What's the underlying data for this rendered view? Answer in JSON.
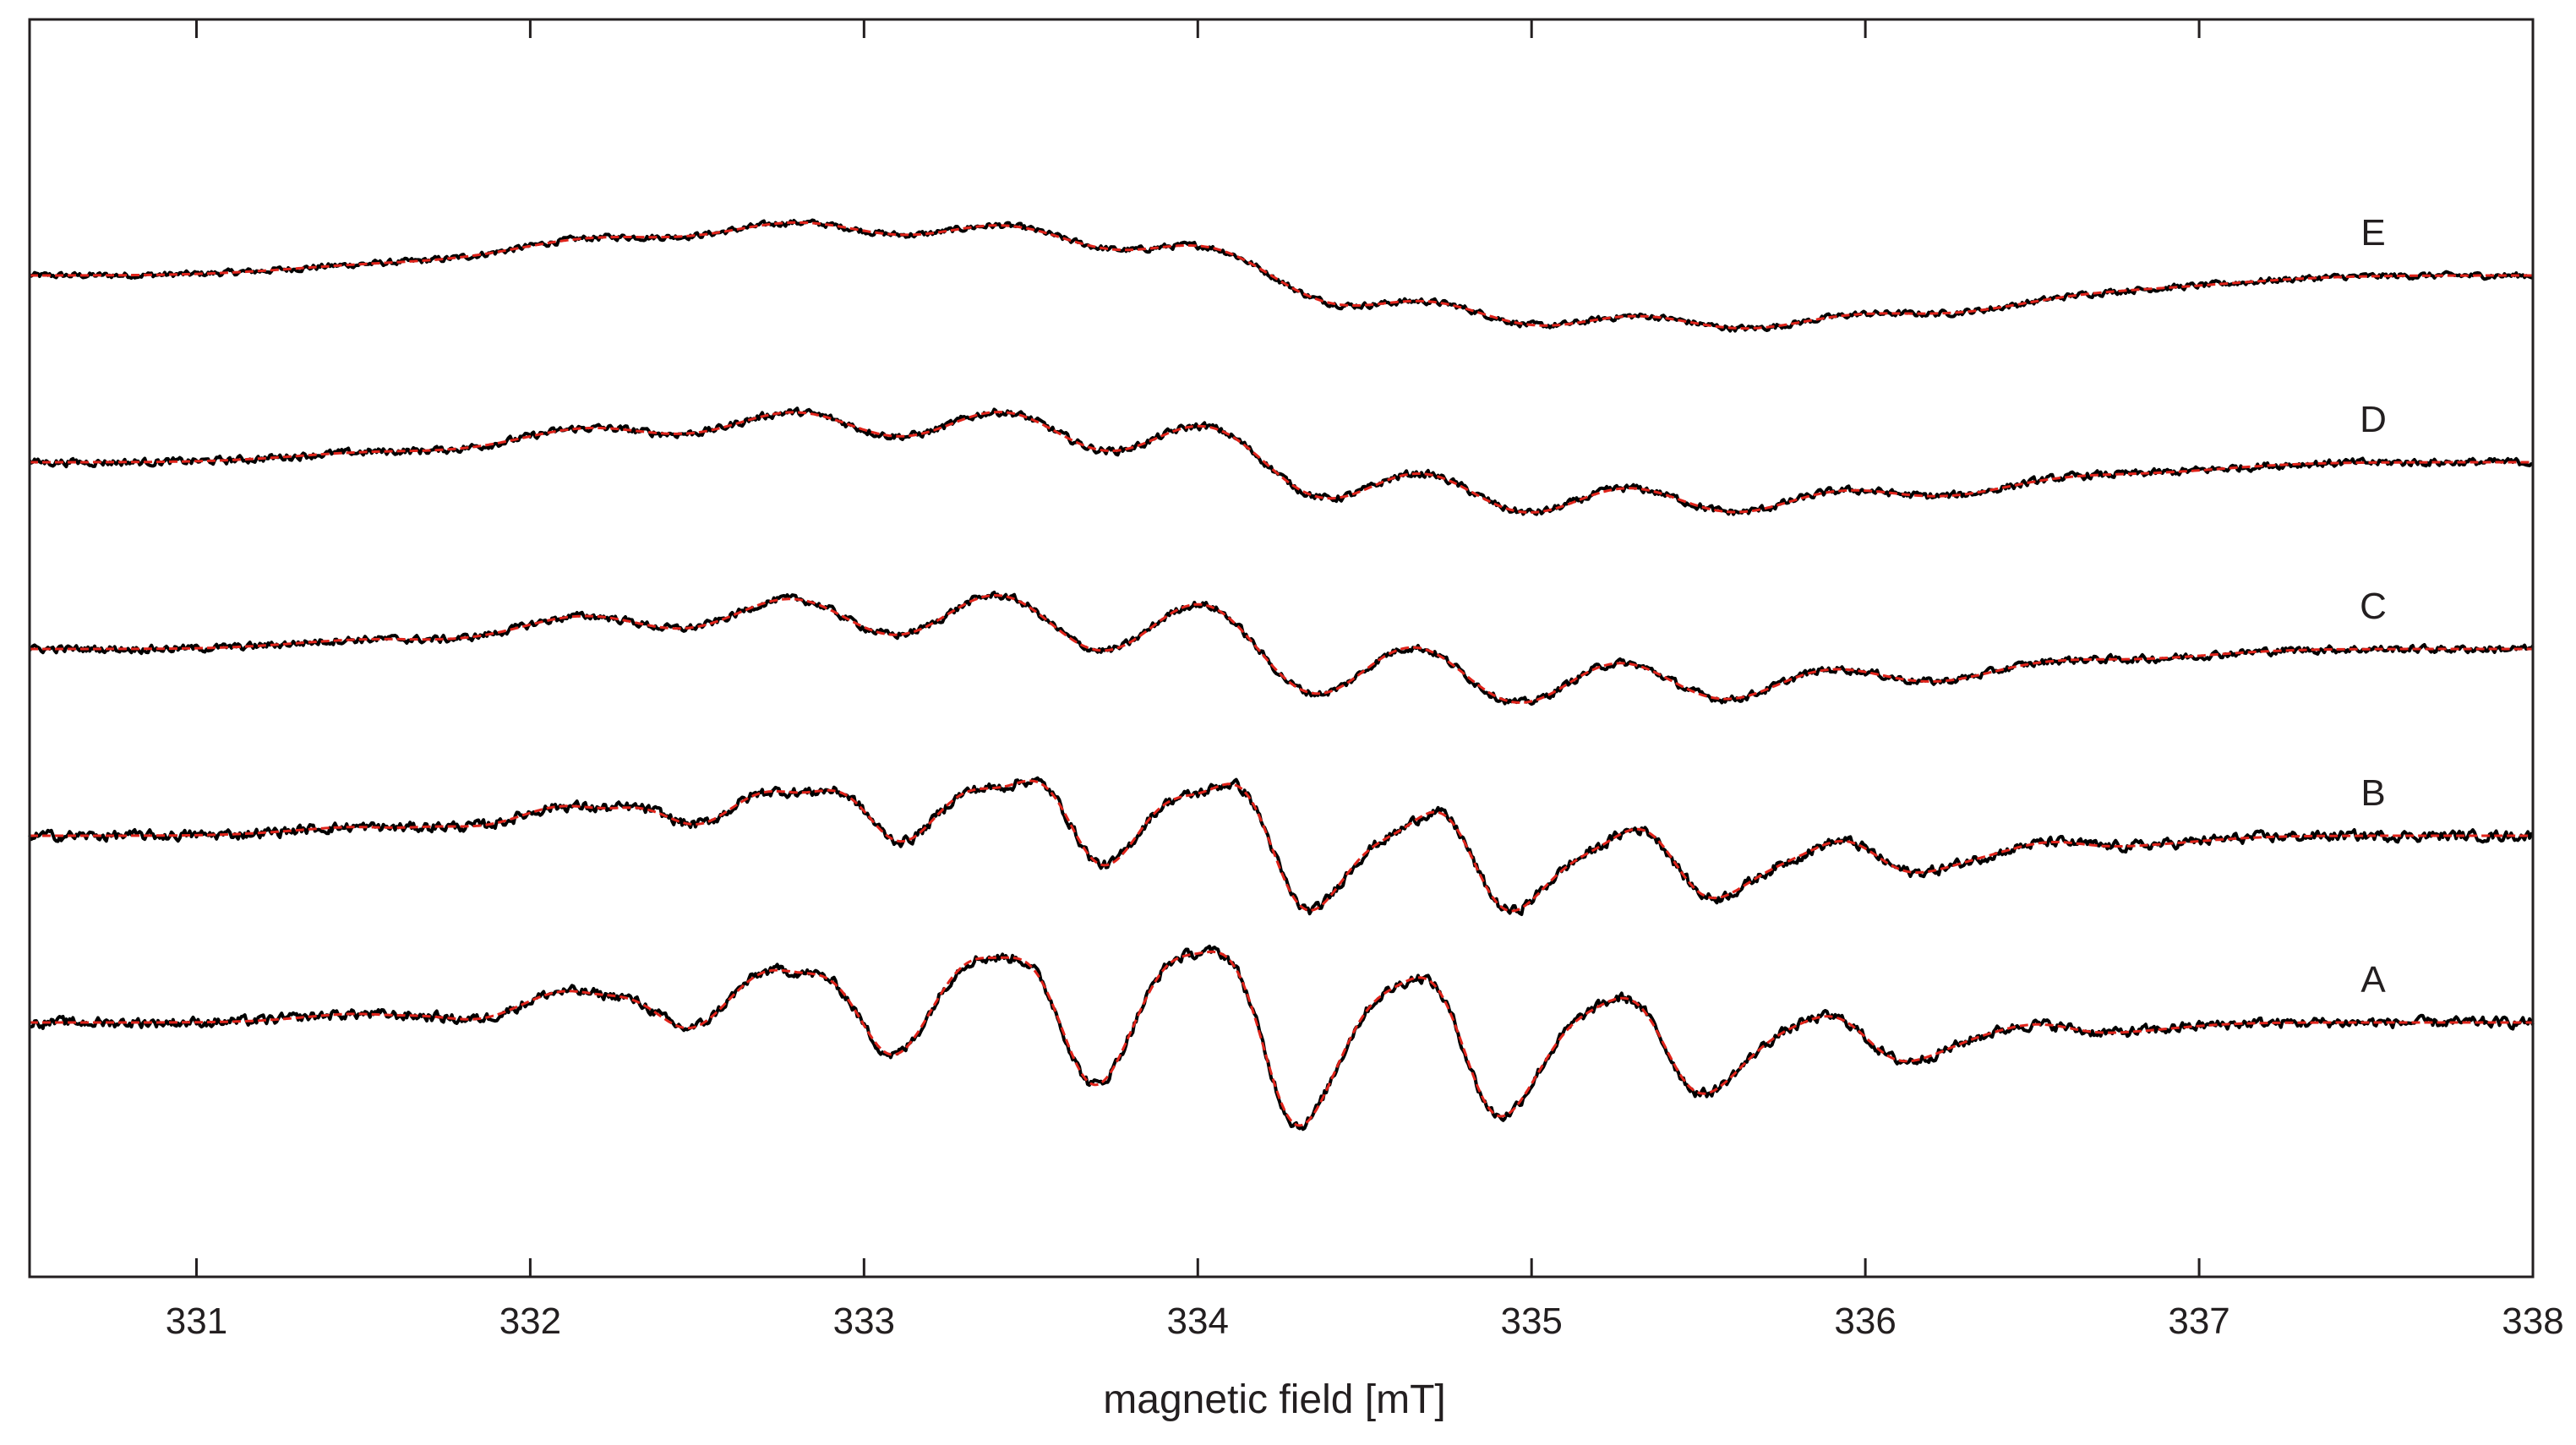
{
  "chart_data": {
    "type": "line",
    "title": "",
    "xlabel": "magnetic field [mT]",
    "ylabel": "",
    "xlim": [
      330.5,
      338
    ],
    "xticks": [
      331,
      332,
      333,
      334,
      335,
      336,
      337,
      338
    ],
    "xtick_labels": [
      "331",
      "332",
      "333",
      "334",
      "335",
      "336",
      "337",
      "338"
    ],
    "grid": false,
    "yticks_shown": false,
    "colors": {
      "experimental": "#000000",
      "simulation": "#e0241b",
      "axes": "#231f20"
    },
    "line_model": {
      "description": "Nine-line EPR derivative spectrum (quintet-of-doublets-like envelope), traces vertically offset in arbitrary units",
      "line_centers_mT": [
        331.8,
        332.42,
        333.02,
        333.62,
        334.22,
        334.82,
        335.42,
        336.02,
        336.62
      ],
      "relative_intensities": [
        0.06,
        0.26,
        0.55,
        0.82,
        1.0,
        0.82,
        0.55,
        0.26,
        0.06
      ]
    },
    "series": [
      {
        "name": "E",
        "label": "E",
        "baseline": 4.0,
        "linewidth_mT": 0.32,
        "noise": 0.018,
        "shift_mT": 0.0,
        "scale": 1.0
      },
      {
        "name": "D",
        "label": "D",
        "baseline": 3.0,
        "linewidth_mT": 0.29,
        "noise": 0.022,
        "shift_mT": -0.02,
        "scale": 1.0
      },
      {
        "name": "C",
        "label": "C",
        "baseline": 2.0,
        "linewidth_mT": 0.27,
        "noise": 0.022,
        "shift_mT": -0.04,
        "scale": 1.0
      },
      {
        "name": "B",
        "label": "B",
        "baseline": 1.0,
        "linewidth_mT": 0.25,
        "noise": 0.03,
        "shift_mT": -0.06,
        "scale": 1.02
      },
      {
        "name": "A",
        "label": "A",
        "baseline": 0.0,
        "linewidth_mT": 0.22,
        "noise": 0.03,
        "shift_mT": -0.08,
        "scale": 1.05
      }
    ],
    "legend": "none",
    "annotations": [
      "E",
      "D",
      "C",
      "B",
      "A"
    ]
  }
}
